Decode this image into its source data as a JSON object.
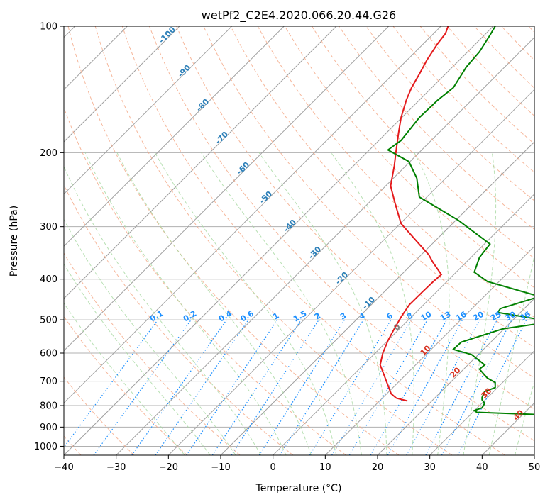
{
  "chart_data": {
    "type": "line",
    "subtype": "skew-t log-p diagram",
    "title": "wetPf2_C2E4.2020.066.20.44.G26",
    "xlabel": "Temperature (°C)",
    "ylabel": "Pressure (hPa)",
    "xlim": [
      -40,
      50
    ],
    "ylim": [
      1050,
      100
    ],
    "y_scale": "log",
    "grid": true,
    "x_ticks": [
      "−40",
      "−30",
      "−20",
      "−10",
      "0",
      "10",
      "20",
      "30",
      "40",
      "50"
    ],
    "y_ticks": [
      "100",
      "200",
      "300",
      "400",
      "500",
      "600",
      "700",
      "800",
      "900",
      "1000"
    ],
    "series": [
      {
        "color": "#e41a1c",
        "points": [
          [
            -40,
            25.7,
            780
          ],
          [
            -40,
            23.6,
            768
          ],
          [
            -39,
            22.6,
            750
          ],
          [
            -38,
            20.5,
            640
          ],
          [
            -36,
            21.0,
            600
          ],
          [
            -33,
            22.0,
            560
          ],
          [
            -30,
            23.2,
            525
          ],
          [
            -27,
            24.6,
            490
          ],
          [
            -24,
            26.1,
            460
          ],
          [
            -21,
            28.5,
            430
          ],
          [
            -18,
            30.7,
            405
          ],
          [
            -17,
            32.2,
            390
          ],
          [
            -18,
            30.6,
            365
          ],
          [
            -20,
            29.8,
            350
          ],
          [
            -24,
            27.0,
            320
          ],
          [
            -29,
            24.5,
            295
          ],
          [
            -34,
            23.4,
            265
          ],
          [
            -38,
            22.5,
            240
          ],
          [
            -42,
            23.2,
            215
          ],
          [
            -46,
            23.5,
            200
          ],
          [
            -50,
            24.0,
            180
          ],
          [
            -55,
            24.5,
            165
          ],
          [
            -58,
            25.5,
            150
          ],
          [
            -60,
            26.5,
            140
          ],
          [
            -63,
            28.0,
            130
          ],
          [
            -66,
            29.5,
            120
          ],
          [
            -69,
            31.5,
            110
          ],
          [
            -72,
            33.0,
            104
          ],
          [
            -73,
            33.5,
            100
          ]
        ]
      },
      {
        "color": "#008000",
        "points": [
          [
            -42,
            50.5,
            840
          ],
          [
            -45,
            39.0,
            830
          ],
          [
            -48,
            38.5,
            822
          ],
          [
            -46,
            40.0,
            810
          ],
          [
            -50,
            40.5,
            790
          ],
          [
            -47,
            40.0,
            775
          ],
          [
            -44,
            40.0,
            765
          ],
          [
            -41,
            40.5,
            740
          ],
          [
            -38,
            42.5,
            725
          ],
          [
            -40,
            42.5,
            705
          ],
          [
            -44,
            41.0,
            688
          ],
          [
            -48,
            39.5,
            655
          ],
          [
            -45,
            40.5,
            640
          ],
          [
            -44,
            38.0,
            605
          ],
          [
            -49,
            34.5,
            588
          ],
          [
            -46,
            36.0,
            565
          ],
          [
            -34,
            44.0,
            525
          ],
          [
            -16,
            53.5,
            505
          ],
          [
            -30,
            43.0,
            480
          ],
          [
            -33,
            43.5,
            470
          ],
          [
            -18,
            51.0,
            440
          ],
          [
            -30,
            41.0,
            405
          ],
          [
            -34,
            38.5,
            385
          ],
          [
            -24,
            39.5,
            355
          ],
          [
            -24,
            41.5,
            330
          ],
          [
            -30,
            35.5,
            290
          ],
          [
            -40,
            28.0,
            255
          ],
          [
            -43,
            27.5,
            230
          ],
          [
            -48,
            26.0,
            210
          ],
          [
            -55,
            22.0,
            197
          ],
          [
            -60,
            24.5,
            187
          ],
          [
            -58,
            28.0,
            165
          ],
          [
            -58,
            31.5,
            150
          ],
          [
            -58,
            34.5,
            140
          ],
          [
            -60,
            37.0,
            125
          ],
          [
            -64,
            39.5,
            115
          ],
          [
            -70,
            41.5,
            105
          ],
          [
            -74,
            42.5,
            100
          ]
        ]
      }
    ],
    "isotherm_labels": [
      "-100",
      "-90",
      "-80",
      "-70",
      "-60",
      "-50",
      "-40",
      "-30",
      "-20",
      "-10",
      "0",
      "10",
      "20",
      "30",
      "40"
    ],
    "mixing_ratio_labels": [
      "0.1",
      "0.2",
      "0.4",
      "0.6",
      "1",
      "1.5",
      "2",
      "3",
      "4",
      "6",
      "8",
      "10",
      "13",
      "16",
      "20",
      "25",
      "30",
      "36"
    ],
    "colors": {
      "temperature": "#e41a1c",
      "dewpoint": "#008000",
      "isotherm_grid": "#a0a0a0",
      "dry_adiabat": "#f4a582",
      "moist_adiabat": "#a6d8a0",
      "mixing_ratio": "#1e90ff",
      "isotherm_label_cold": "#2c7fb8",
      "isotherm_label_warm": "#d7301f"
    }
  }
}
